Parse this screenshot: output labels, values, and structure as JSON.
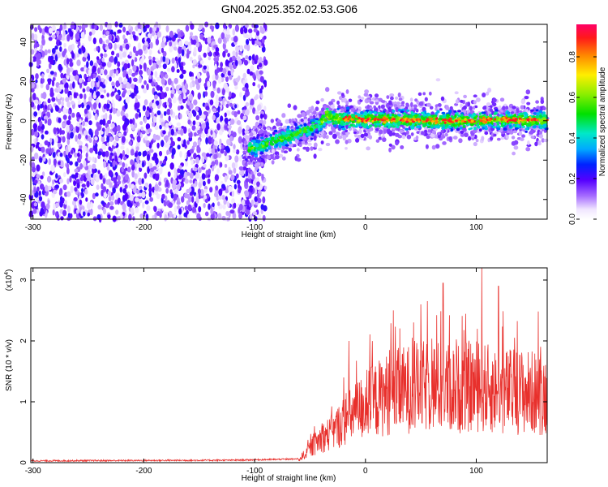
{
  "title": "GN04.2025.352.02.53.G06",
  "chart_data": [
    {
      "type": "heatmap",
      "xlabel": "Height of straight line (km)",
      "ylabel": "Frequency (Hz)",
      "xlim": [
        -302,
        164
      ],
      "ylim": [
        -50,
        49
      ],
      "xticks": [
        "-300",
        "-200",
        "-100",
        "0",
        "100"
      ],
      "xtick_values": [
        -300,
        -200,
        -100,
        0,
        100
      ],
      "yticks": [
        "40",
        "20",
        "0",
        "-20",
        "-40"
      ],
      "ytick_values": [
        40,
        20,
        0,
        -20,
        -40
      ],
      "colorbar": {
        "label": "Normalized spectral amplitude",
        "range": [
          0,
          0.96
        ],
        "ticks": [
          "0.0",
          "0.2",
          "0.4",
          "0.6",
          "0.8"
        ],
        "tick_values": [
          0.0,
          0.2,
          0.4,
          0.6,
          0.8
        ]
      },
      "ridge": {
        "x": [
          -100,
          -90,
          -80,
          -70,
          -60,
          -50,
          -40,
          -35,
          -30,
          -20,
          0,
          30,
          60,
          90,
          120,
          164
        ],
        "y": [
          -14,
          -12,
          -10,
          -8,
          -6,
          -4,
          -1,
          3,
          1,
          1,
          0.5,
          0.5,
          0,
          0,
          0.5,
          0
        ]
      },
      "noise_region_xlim": [
        -302,
        -90
      ]
    },
    {
      "type": "line",
      "xlabel": "Height of straight line (km)",
      "ylabel": "SNR (10 * v/v)",
      "y_multiplier": "(x10",
      "y_multiplier_exp": "4",
      "y_multiplier_close": ")",
      "xlim": [
        -302,
        164
      ],
      "ylim": [
        0,
        3.2
      ],
      "xticks": [
        "-300",
        "-200",
        "-100",
        "0",
        "100"
      ],
      "xtick_values": [
        -300,
        -200,
        -100,
        0,
        100
      ],
      "yticks": [
        "0",
        "1",
        "2",
        "3"
      ],
      "ytick_values": [
        0,
        1,
        2,
        3
      ],
      "color": "#e8302c",
      "envelope": {
        "x": [
          -302,
          -120,
          -60,
          -50,
          -40,
          -30,
          -20,
          -10,
          0,
          20,
          40,
          60,
          80,
          100,
          120,
          140,
          164
        ],
        "y": [
          0.03,
          0.04,
          0.06,
          0.25,
          0.45,
          0.55,
          0.75,
          0.9,
          1.05,
          1.25,
          1.35,
          1.4,
          1.35,
          1.4,
          1.3,
          1.3,
          1.25
        ]
      },
      "peaks": [
        {
          "x": -15,
          "y": 2.0
        },
        {
          "x": 70,
          "y": 2.95
        },
        {
          "x": 105,
          "y": 3.2
        },
        {
          "x": 120,
          "y": 2.9
        },
        {
          "x": 50,
          "y": 2.6
        }
      ]
    }
  ]
}
